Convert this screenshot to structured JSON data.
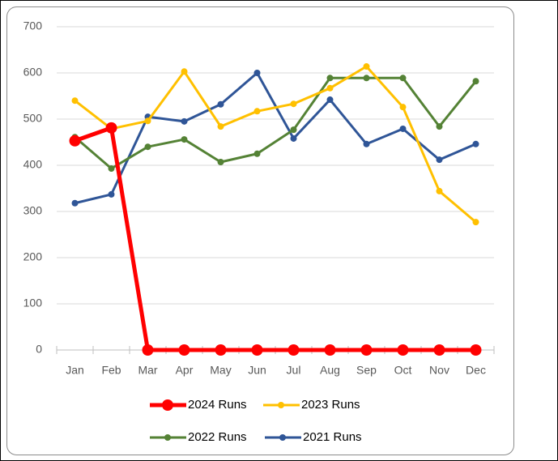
{
  "chart_data": {
    "type": "line",
    "categories": [
      "Jan",
      "Feb",
      "Mar",
      "Apr",
      "May",
      "Jun",
      "Jul",
      "Aug",
      "Sep",
      "Oct",
      "Nov",
      "Dec"
    ],
    "series": [
      {
        "name": "2024 Runs",
        "color": "#ff0000",
        "values": [
          453,
          481,
          0,
          0,
          0,
          0,
          0,
          0,
          0,
          0,
          0,
          0
        ]
      },
      {
        "name": "2023 Runs",
        "color": "#ffc000",
        "values": [
          540,
          479,
          496,
          603,
          484,
          517,
          533,
          567,
          614,
          526,
          344,
          277
        ]
      },
      {
        "name": "2022 Runs",
        "color": "#548235",
        "values": [
          461,
          393,
          440,
          456,
          407,
          425,
          477,
          589,
          589,
          589,
          484,
          582
        ]
      },
      {
        "name": "2021 Runs",
        "color": "#2f5597",
        "values": [
          318,
          337,
          505,
          495,
          532,
          600,
          458,
          542,
          446,
          479,
          412,
          446
        ]
      }
    ],
    "ylim": [
      0,
      700
    ],
    "yticks": [
      0,
      100,
      200,
      300,
      400,
      500,
      600,
      700
    ],
    "grid": true
  }
}
